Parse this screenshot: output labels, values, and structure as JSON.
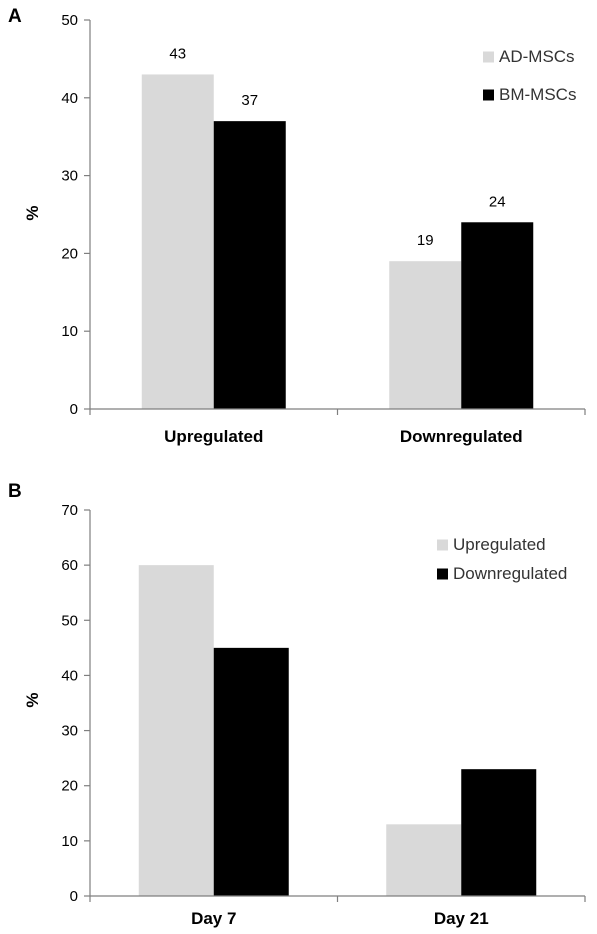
{
  "chart_data": [
    {
      "type": "bar",
      "panel": "A",
      "categories": [
        "Upregulated",
        "Downregulated"
      ],
      "series": [
        {
          "name": "AD-MSCs",
          "values": [
            43,
            19
          ],
          "color": "#d9d9d9"
        },
        {
          "name": "BM-MSCs",
          "values": [
            37,
            24
          ],
          "color": "#000000"
        }
      ],
      "data_labels": true,
      "ylabel": "%",
      "ylim": [
        0,
        50
      ],
      "yticks": [
        0,
        10,
        20,
        30,
        40,
        50
      ],
      "grid": false,
      "legend": "top-right"
    },
    {
      "type": "bar",
      "panel": "B",
      "categories": [
        "Day 7",
        "Day 21"
      ],
      "series": [
        {
          "name": "Upregulated",
          "values": [
            60,
            13
          ],
          "color": "#d9d9d9"
        },
        {
          "name": "Downregulated",
          "values": [
            45,
            23
          ],
          "color": "#000000"
        }
      ],
      "data_labels": false,
      "ylabel": "%",
      "ylim": [
        0,
        70
      ],
      "yticks": [
        0,
        10,
        20,
        30,
        40,
        50,
        60,
        70
      ],
      "grid": false,
      "legend": "top-right"
    }
  ]
}
